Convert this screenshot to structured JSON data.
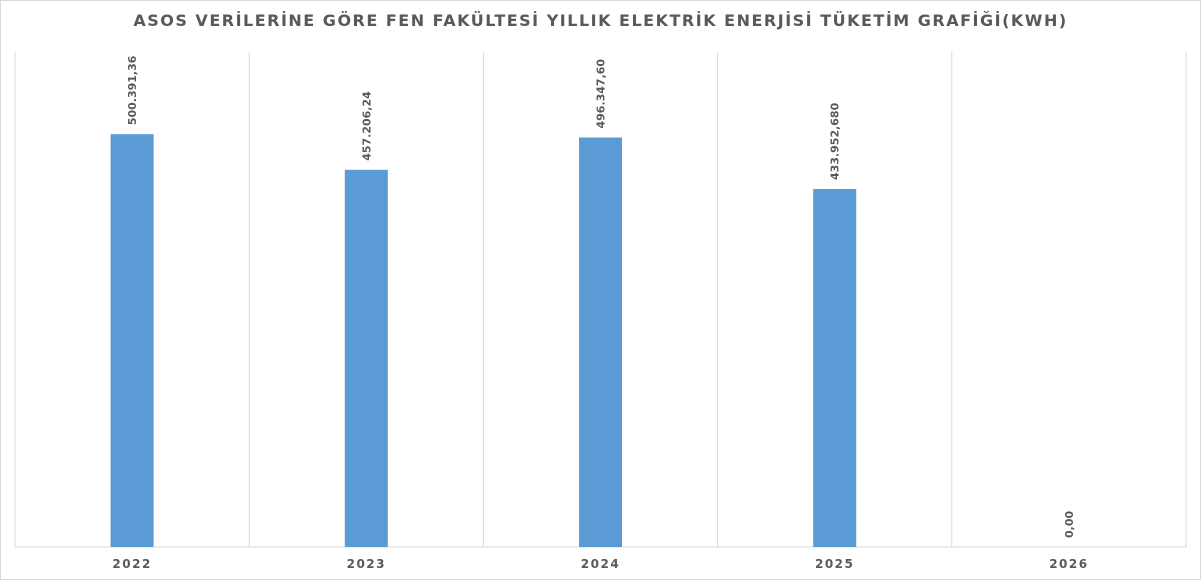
{
  "chart_data": {
    "type": "bar",
    "title": "ASOS VERİLERİNE GÖRE FEN FAKÜLTESİ YILLIK ELEKTRİK ENERJİSİ TÜKETİM GRAFİĞİ(KWH)",
    "xlabel": "",
    "ylabel": "",
    "categories": [
      "2022",
      "2023",
      "2024",
      "2025",
      "2026"
    ],
    "values": [
      500391.36,
      457206.24,
      496347.6,
      433952.68,
      0
    ],
    "data_labels": [
      "500.391,36",
      "457.206,24",
      "496.347,60",
      "433.952,680",
      "0,00"
    ],
    "ylim": [
      0,
      600000
    ],
    "grid": "vertical category separators",
    "legend": "none",
    "bar_color": "#5b9bd5"
  }
}
